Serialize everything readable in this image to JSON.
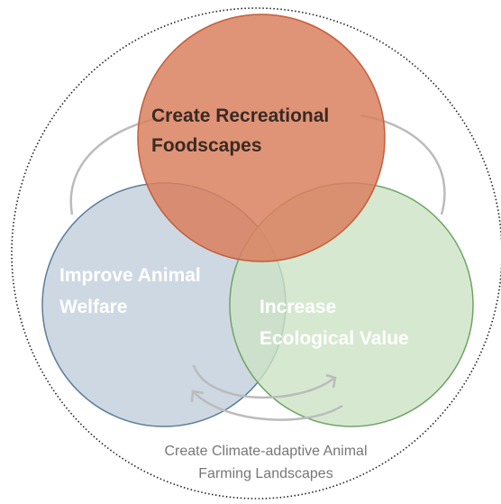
{
  "nodes": [
    {
      "label": [
        "Create Recreational",
        "Foodscapes"
      ]
    },
    {
      "label": [
        "Improve Animal",
        "Welfare"
      ]
    },
    {
      "label": [
        "Increase",
        "Ecological Value"
      ]
    }
  ],
  "outer": {
    "label": [
      "Create Climate-adaptive Animal",
      "Farming Landscapes"
    ]
  }
}
